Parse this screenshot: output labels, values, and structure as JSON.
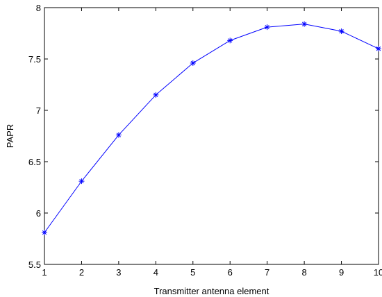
{
  "chart_data": {
    "type": "line",
    "title": "",
    "xlabel": "Transmitter antenna element",
    "ylabel": "PAPR",
    "xlim": [
      1,
      10
    ],
    "ylim": [
      5.5,
      8
    ],
    "xticks": [
      1,
      2,
      3,
      4,
      5,
      6,
      7,
      8,
      9,
      10
    ],
    "xtick_labels": [
      "1",
      "2",
      "3",
      "4",
      "5",
      "6",
      "7",
      "8",
      "9",
      "10"
    ],
    "yticks": [
      5.5,
      6,
      6.5,
      7,
      7.5,
      8
    ],
    "ytick_labels": [
      "5.5",
      "6",
      "6.5",
      "7",
      "7.5",
      "8"
    ],
    "grid": false,
    "series": [
      {
        "color": "#0000ff",
        "marker": "asterisk",
        "x": [
          1,
          2,
          3,
          4,
          5,
          6,
          7,
          8,
          9,
          10
        ],
        "y": [
          5.81,
          6.31,
          6.76,
          7.15,
          7.46,
          7.68,
          7.81,
          7.84,
          7.77,
          7.6
        ]
      }
    ]
  }
}
